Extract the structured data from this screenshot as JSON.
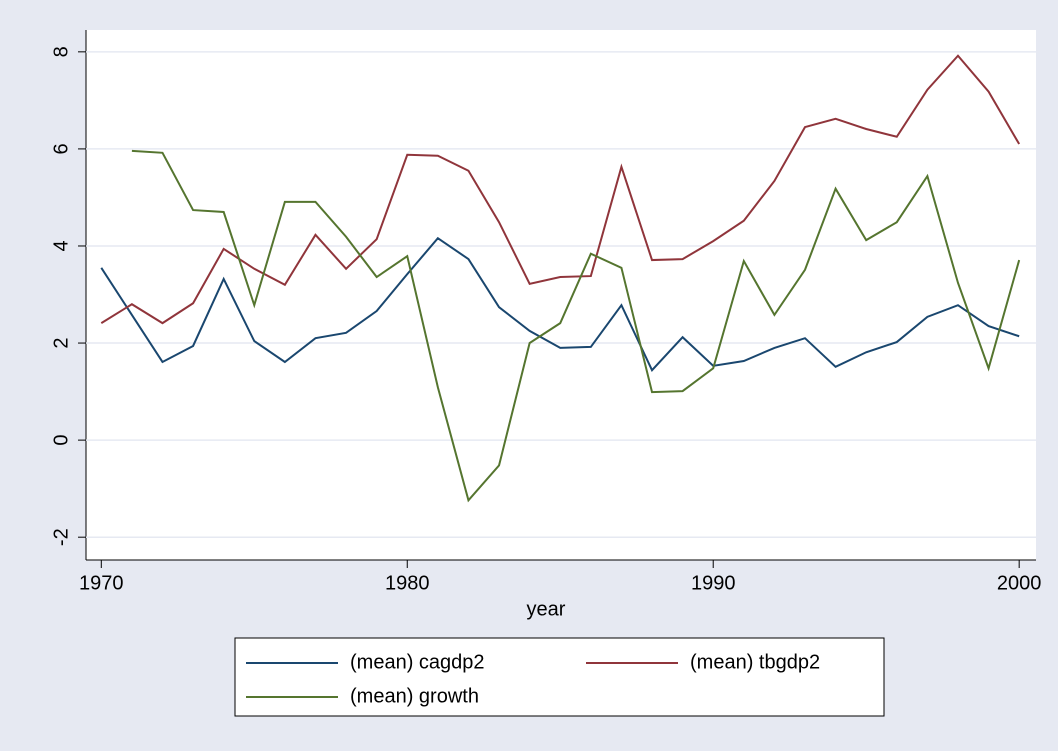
{
  "chart_data": {
    "type": "line",
    "x_label": "year",
    "x": [
      1970,
      1971,
      1972,
      1973,
      1974,
      1975,
      1976,
      1977,
      1978,
      1979,
      1980,
      1981,
      1982,
      1983,
      1984,
      1985,
      1986,
      1987,
      1988,
      1989,
      1990,
      1991,
      1992,
      1993,
      1994,
      1995,
      1996,
      1997,
      1998,
      1999,
      2000
    ],
    "series": [
      {
        "name": "(mean) cagdp2",
        "color": "#1a476f",
        "values": [
          3.55,
          2.58,
          1.61,
          1.94,
          3.32,
          2.04,
          1.61,
          2.1,
          2.21,
          2.66,
          3.42,
          4.16,
          3.73,
          2.74,
          2.25,
          1.9,
          1.92,
          2.78,
          1.44,
          2.12,
          1.53,
          1.63,
          1.9,
          2.1,
          1.51,
          1.81,
          2.02,
          2.54,
          2.78,
          2.35,
          2.14
        ]
      },
      {
        "name": "(mean) tbgdp2",
        "color": "#90353b",
        "values": [
          2.41,
          2.8,
          2.41,
          2.82,
          3.94,
          3.53,
          3.2,
          4.23,
          3.53,
          4.14,
          5.88,
          5.86,
          5.55,
          4.49,
          3.22,
          3.36,
          3.38,
          5.63,
          3.71,
          3.73,
          4.1,
          4.52,
          5.34,
          6.45,
          6.62,
          6.41,
          6.25,
          7.22,
          7.92,
          7.18,
          6.1
        ]
      },
      {
        "name": "(mean) growth",
        "color": "#55752f",
        "values": [
          null,
          5.96,
          5.92,
          4.74,
          4.7,
          2.78,
          4.91,
          4.91,
          4.19,
          3.36,
          3.79,
          1.09,
          -1.24,
          -0.52,
          2.0,
          2.41,
          3.84,
          3.55,
          0.99,
          1.01,
          1.48,
          3.69,
          2.58,
          3.51,
          5.18,
          4.12,
          4.49,
          5.44,
          3.24,
          1.48,
          3.71
        ]
      }
    ],
    "xlim": [
      1969.5,
      2000.55
    ],
    "xticks": [
      1970,
      1980,
      1990,
      2000
    ],
    "ylim": [
      -2.47,
      8.45
    ],
    "yticks": [
      -2,
      0,
      2,
      4,
      6,
      8
    ],
    "grid": true
  }
}
